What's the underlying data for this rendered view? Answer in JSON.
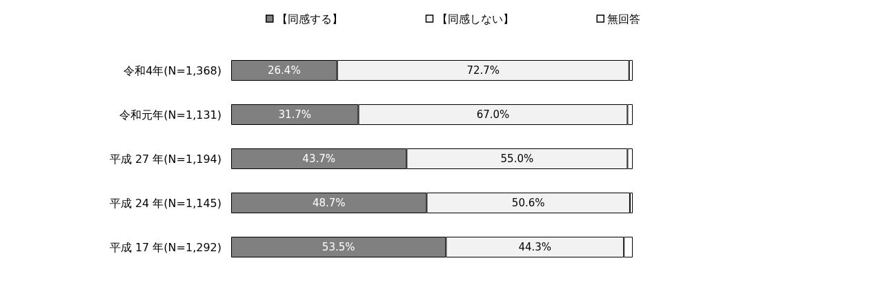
{
  "chart_data": {
    "type": "bar",
    "orientation": "horizontal",
    "stacked": true,
    "legend": "top",
    "categories": [
      "令和4年(N=1,368)",
      "令和元年(N=1,131)",
      "平成 27 年(N=1,194)",
      "平成 24 年(N=1,145)",
      "平成 17 年(N=1,292)"
    ],
    "series": [
      {
        "name": "【同感する】",
        "color": "#808080",
        "values": [
          26.4,
          31.7,
          43.7,
          48.7,
          53.5
        ],
        "value_labels": [
          "26.4%",
          "31.7%",
          "43.7%",
          "48.7%",
          "53.5%"
        ]
      },
      {
        "name": "【同感しない】",
        "color": "#f2f2f2",
        "values": [
          72.7,
          67.0,
          55.0,
          50.6,
          44.3
        ],
        "value_labels": [
          "72.7%",
          "67.0%",
          "55.0%",
          "50.6%",
          "44.3%"
        ]
      },
      {
        "name": "無回答",
        "color": "#ffffff",
        "values": [
          0.9,
          1.3,
          1.3,
          0.7,
          2.2
        ],
        "value_labels": [
          null,
          null,
          null,
          null,
          null
        ]
      }
    ]
  }
}
